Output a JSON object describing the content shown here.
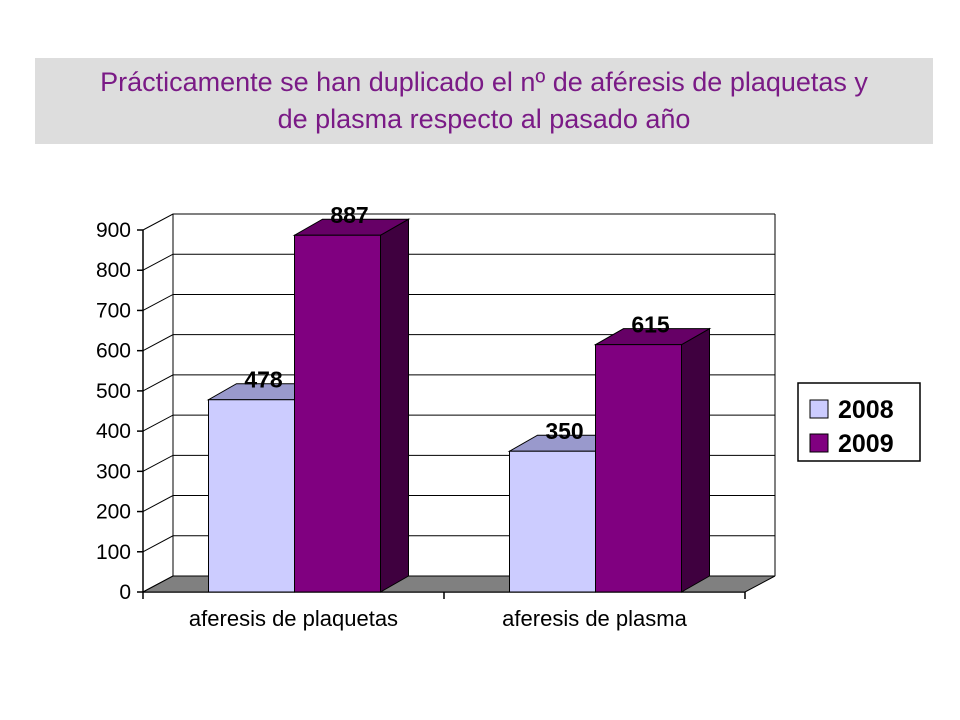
{
  "title": "Prácticamente se han duplicado el nº de aféresis de plaquetas y de plasma respecto al pasado año",
  "chart_data": {
    "type": "bar",
    "categories": [
      "aferesis de plaquetas",
      "aferesis  de plasma"
    ],
    "series": [
      {
        "name": "2008",
        "values": [
          478,
          350
        ],
        "color": "#ccccff",
        "top_color": "#9999cc",
        "side_color": "#a3a3cc"
      },
      {
        "name": "2009",
        "values": [
          887,
          615
        ],
        "color": "#800080",
        "top_color": "#660066",
        "side_color": "#3f003f"
      }
    ],
    "data_labels": [
      "478",
      "350",
      "887",
      "615"
    ],
    "ylim": [
      0,
      900
    ],
    "yticks": [
      "0",
      "100",
      "200",
      "300",
      "400",
      "500",
      "600",
      "700",
      "800",
      "900"
    ],
    "grid": true,
    "legend_position": "right",
    "floor_color": "#808080"
  }
}
